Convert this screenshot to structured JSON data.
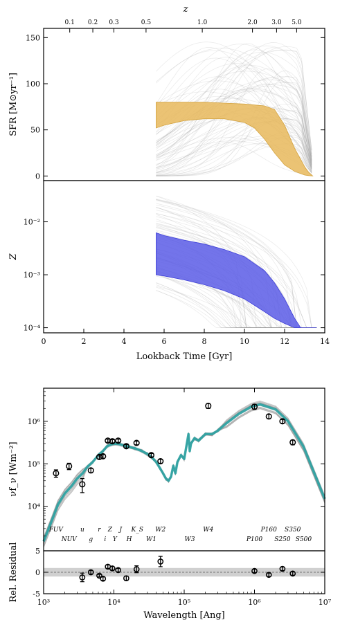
{
  "chart_data": [
    {
      "type": "area",
      "panel": "sfr",
      "ylabel": "SFR [M⊙yr⁻¹]",
      "top_axis_label": "z",
      "top_ticks": [
        {
          "label": "0.1",
          "x": 1.3
        },
        {
          "label": "0.2",
          "x": 2.45
        },
        {
          "label": "0.3",
          "x": 3.5
        },
        {
          "label": "0.5",
          "x": 5.1
        },
        {
          "label": "1.0",
          "x": 7.9
        },
        {
          "label": "2.0",
          "x": 10.4
        },
        {
          "label": "3.0",
          "x": 11.6
        },
        {
          "label": "5.0",
          "x": 12.6
        }
      ],
      "xlim": [
        0,
        14
      ],
      "ylim": [
        -5,
        160
      ],
      "yticks": [
        0,
        50,
        100,
        150
      ],
      "band_color": "#e8b95c",
      "band": {
        "x": [
          5.6,
          6,
          7,
          8,
          9,
          10,
          10.5,
          11,
          11.5,
          12,
          12.5,
          13,
          13.2,
          13.4
        ],
        "low": [
          52,
          55,
          60,
          62,
          62,
          58,
          52,
          40,
          25,
          12,
          5,
          1,
          0.3,
          0
        ],
        "high": [
          80,
          80,
          80,
          80,
          79,
          78,
          77,
          76,
          72,
          55,
          30,
          10,
          4,
          0
        ]
      }
    },
    {
      "type": "area",
      "panel": "metallicity",
      "ylabel": "Z",
      "xlabel": "Lookback Time [Gyr]",
      "xlim": [
        0,
        14
      ],
      "xticks": [
        0,
        2,
        4,
        6,
        8,
        10,
        12,
        14
      ],
      "scale": "log",
      "ylim": [
        8e-05,
        0.06
      ],
      "ytick_labels": [
        "10⁻⁴",
        "10⁻³",
        "10⁻²"
      ],
      "band_color": "#5b5ce6",
      "band": {
        "x": [
          5.6,
          6,
          7,
          8,
          9,
          10,
          11,
          11.5,
          12,
          12.5,
          12.8,
          13,
          13.6
        ],
        "low": [
          0.001,
          0.00095,
          0.0008,
          0.00065,
          0.0005,
          0.00035,
          0.0002,
          0.00015,
          0.00012,
          0.0001,
          0.0001,
          0.0001,
          0.0001
        ],
        "high": [
          0.0062,
          0.0055,
          0.0045,
          0.0038,
          0.003,
          0.0022,
          0.0012,
          0.0007,
          0.00035,
          0.00015,
          0.0001,
          0.0001,
          0.0001
        ]
      }
    },
    {
      "type": "scatter",
      "panel": "sed",
      "ylabel": "νf_ν [Wm⁻²]",
      "xscale": "log",
      "yscale": "log",
      "xlim": [
        1000,
        10000000
      ],
      "ylim": [
        900,
        6000000
      ],
      "ytick_labels": [
        "10⁴",
        "10⁵",
        "10⁶"
      ],
      "model_color": "#2aa3a3",
      "points": [
        {
          "x": 1500,
          "y": 60000,
          "err": 12000
        },
        {
          "x": 2300,
          "y": 88000,
          "err": 15000
        },
        {
          "x": 3550,
          "y": 33000,
          "err": 12000
        },
        {
          "x": 4700,
          "y": 70000,
          "err": 8000
        },
        {
          "x": 6200,
          "y": 145000,
          "err": 15000
        },
        {
          "x": 7000,
          "y": 150000,
          "err": 15000
        },
        {
          "x": 8200,
          "y": 350000,
          "err": 30000
        },
        {
          "x": 9500,
          "y": 340000,
          "err": 30000
        },
        {
          "x": 11500,
          "y": 350000,
          "err": 30000
        },
        {
          "x": 15000,
          "y": 260000,
          "err": 25000
        },
        {
          "x": 21000,
          "y": 310000,
          "err": 30000
        },
        {
          "x": 34000,
          "y": 160000,
          "err": 15000
        },
        {
          "x": 46000,
          "y": 115000,
          "err": 12000
        },
        {
          "x": 220000,
          "y": 2300000,
          "err": 300000
        },
        {
          "x": 1000000,
          "y": 2200000,
          "err": 300000
        },
        {
          "x": 1600000,
          "y": 1300000,
          "err": 150000
        },
        {
          "x": 2500000,
          "y": 1000000,
          "err": 100000
        },
        {
          "x": 3500000,
          "y": 320000,
          "err": 40000
        }
      ],
      "model_line": {
        "x": [
          1000,
          1300,
          1600,
          2000,
          2500,
          3000,
          3600,
          4200,
          5000,
          6000,
          7000,
          8000,
          9000,
          10000,
          12000,
          15000,
          20000,
          25000,
          30000,
          35000,
          40000,
          45000,
          50000,
          55000,
          60000,
          65000,
          70000,
          75000,
          80000,
          90000,
          100000,
          115000,
          120000,
          125000,
          140000,
          160000,
          200000,
          250000,
          300000,
          400000,
          600000,
          900000,
          1200000,
          2000000,
          3000000,
          5000000,
          10000000
        ],
        "y": [
          1500,
          4500,
          11000,
          20000,
          30000,
          45000,
          60000,
          85000,
          110000,
          160000,
          200000,
          260000,
          280000,
          300000,
          290000,
          260000,
          230000,
          200000,
          170000,
          140000,
          110000,
          80000,
          60000,
          45000,
          40000,
          50000,
          90000,
          60000,
          110000,
          160000,
          130000,
          500000,
          200000,
          300000,
          400000,
          350000,
          500000,
          500000,
          600000,
          900000,
          1500000,
          2200000,
          2500000,
          1900000,
          1000000,
          250000,
          15000
        ]
      },
      "band_labels_top": [
        {
          "label": "FUV",
          "x": 1500
        },
        {
          "label": "u",
          "x": 3550
        },
        {
          "label": "r",
          "x": 6200
        },
        {
          "label": "Z",
          "x": 8800
        },
        {
          "label": "J",
          "x": 12500
        },
        {
          "label": "K_S",
          "x": 21500
        },
        {
          "label": "W2",
          "x": 46000
        },
        {
          "label": "W4",
          "x": 220000
        },
        {
          "label": "P160",
          "x": 1600000
        },
        {
          "label": "S350",
          "x": 3500000
        }
      ],
      "band_labels_bottom": [
        {
          "label": "NUV",
          "x": 2300
        },
        {
          "label": "g",
          "x": 4700
        },
        {
          "label": "i",
          "x": 7500
        },
        {
          "label": "Y",
          "x": 10300
        },
        {
          "label": "H",
          "x": 16500
        },
        {
          "label": "W1",
          "x": 34000
        },
        {
          "label": "W3",
          "x": 120000
        },
        {
          "label": "P100",
          "x": 1000000
        },
        {
          "label": "S250",
          "x": 2500000
        },
        {
          "label": "S500",
          "x": 5000000
        }
      ]
    },
    {
      "type": "scatter",
      "panel": "residual",
      "ylabel": "Rel. Residual",
      "xlabel": "Wavelength [Ang]",
      "xscale": "log",
      "xlim": [
        1000,
        10000000
      ],
      "ylim": [
        -5,
        5
      ],
      "yticks": [
        -5,
        0,
        5
      ],
      "xtick_labels": [
        "10³",
        "10⁴",
        "10⁵",
        "10⁶",
        "10⁷"
      ],
      "shade_range": [
        -1,
        1
      ],
      "points": [
        {
          "x": 3550,
          "y": -1.2,
          "err": 1.0
        },
        {
          "x": 4700,
          "y": 0,
          "err": 0.4
        },
        {
          "x": 6200,
          "y": -0.8,
          "err": 0.3
        },
        {
          "x": 7000,
          "y": -1.5,
          "err": 0.4
        },
        {
          "x": 8200,
          "y": 1.3,
          "err": 0.4
        },
        {
          "x": 9500,
          "y": 0.9,
          "err": 0.4
        },
        {
          "x": 11500,
          "y": 0.5,
          "err": 0.4
        },
        {
          "x": 15000,
          "y": -1.4,
          "err": 0.5
        },
        {
          "x": 21000,
          "y": 0.7,
          "err": 0.8
        },
        {
          "x": 46000,
          "y": 2.5,
          "err": 1.2
        },
        {
          "x": 1000000,
          "y": 0.3,
          "err": 0.4
        },
        {
          "x": 1600000,
          "y": -0.6,
          "err": 0.4
        },
        {
          "x": 2500000,
          "y": 0.8,
          "err": 0.4
        },
        {
          "x": 3500000,
          "y": -0.3,
          "err": 0.4
        }
      ]
    }
  ]
}
